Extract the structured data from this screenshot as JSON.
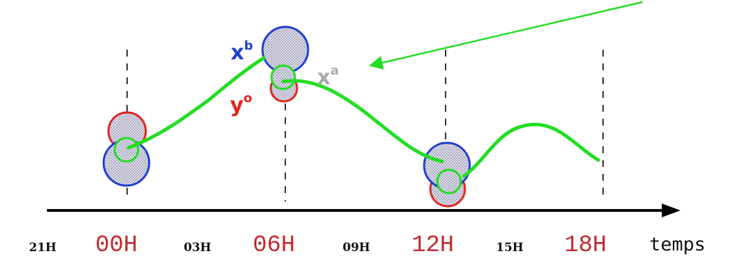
{
  "axis": {
    "label": "temps",
    "ticks": [
      {
        "label": "21H",
        "major": false
      },
      {
        "label": "00H",
        "major": true
      },
      {
        "label": "03H",
        "major": false
      },
      {
        "label": "06H",
        "major": true
      },
      {
        "label": "09H",
        "major": false
      },
      {
        "label": "12H",
        "major": true
      },
      {
        "label": "15H",
        "major": false
      },
      {
        "label": "18H",
        "major": true
      }
    ]
  },
  "labels": {
    "background": {
      "symbol": "x",
      "superscript": "b",
      "color": "#1f3fcf"
    },
    "observation": {
      "symbol": "y",
      "superscript": "o",
      "color": "#e0261e"
    },
    "analysis": {
      "symbol": "x",
      "superscript": "a",
      "color": "#a9a9a9"
    }
  },
  "colors": {
    "trajectory": "#22dd22",
    "background_circle": "#1f3fcf",
    "observation_circle": "#e0261e",
    "analysis_circle": "#22dd22",
    "axis": "#000000",
    "guide_lines": "#000000"
  }
}
